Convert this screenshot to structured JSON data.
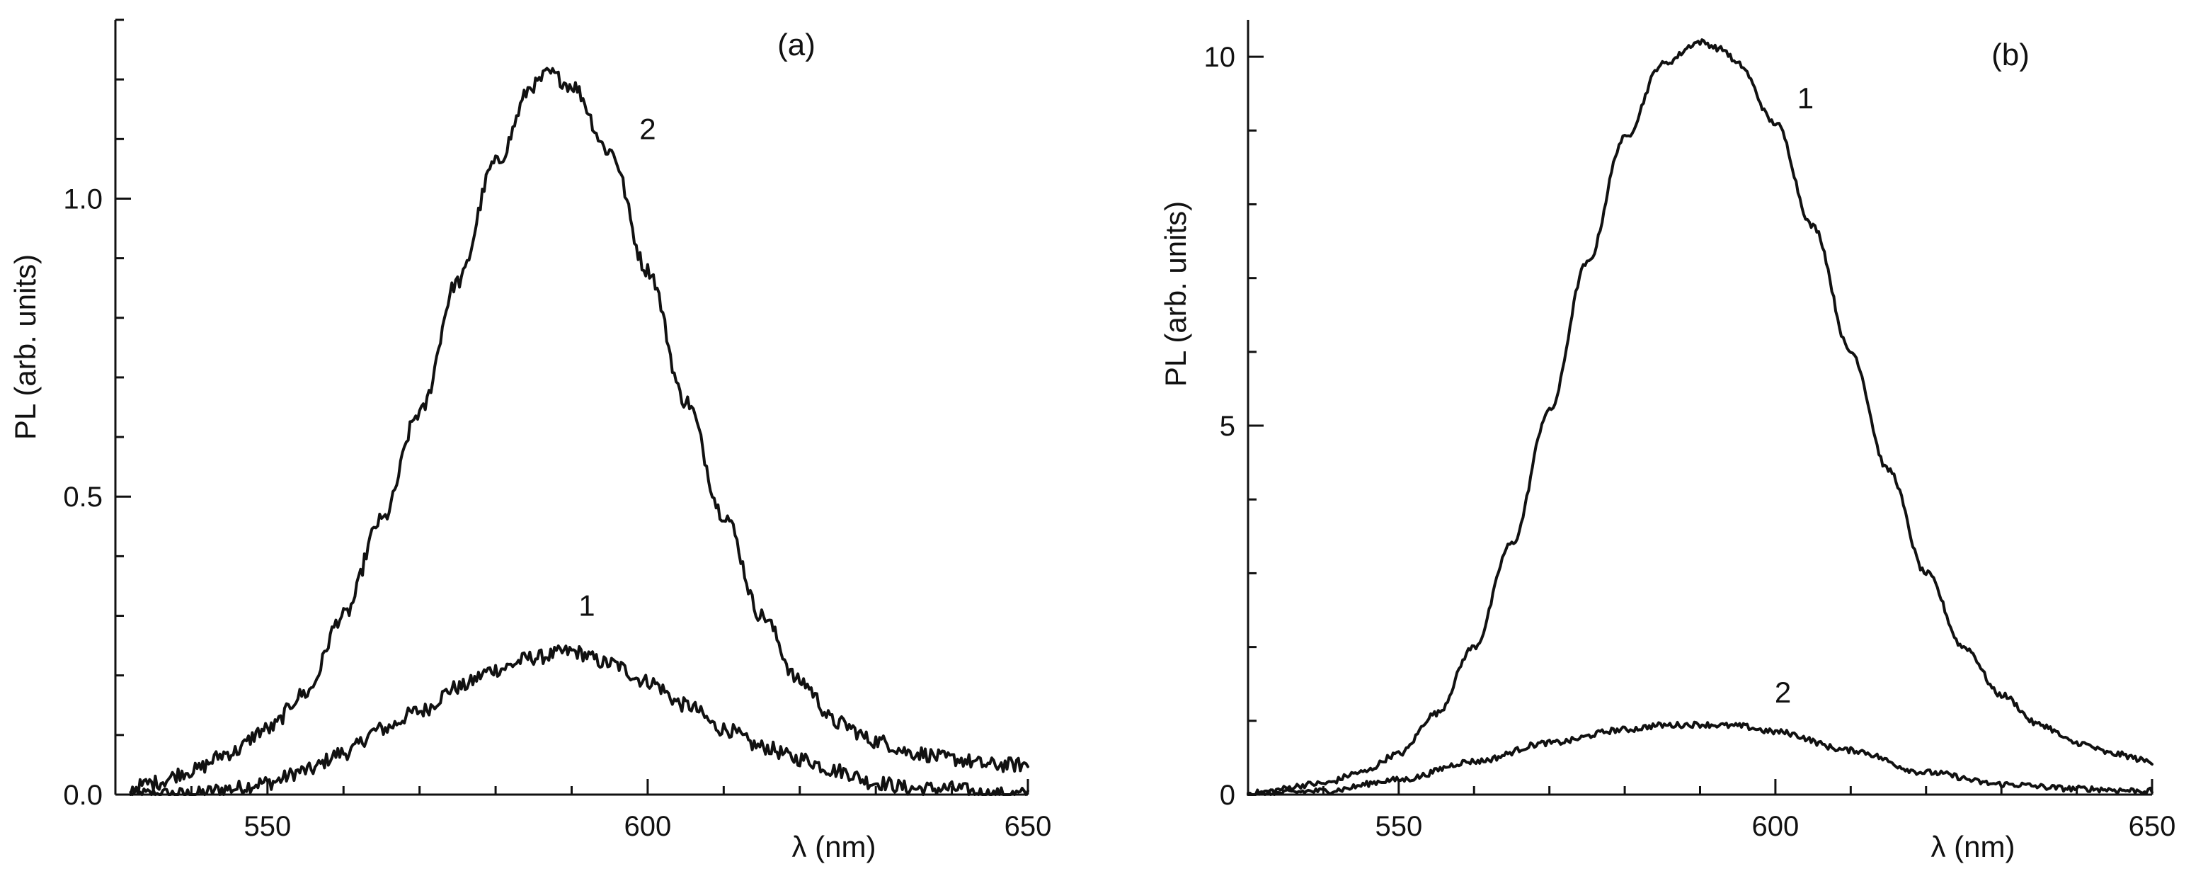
{
  "chart_data": [
    {
      "type": "line",
      "panel_label": "(a)",
      "xlabel": "λ (nm)",
      "ylabel": "PL (arb. units)",
      "xlim": [
        530,
        650
      ],
      "ylim": [
        0,
        1.3
      ],
      "xticks": [
        550,
        600,
        650
      ],
      "xtick_labels": [
        "550",
        "600",
        "650"
      ],
      "yticks": [
        0.0,
        0.5,
        1.0
      ],
      "ytick_labels": [
        "0.0",
        "0.5",
        "1.0"
      ],
      "x_minor_step": 10,
      "y_minor_step": 0.1,
      "series": [
        {
          "name": "1",
          "x": [
            532,
            540,
            545,
            550,
            555,
            560,
            565,
            570,
            575,
            580,
            585,
            590,
            595,
            600,
            605,
            610,
            615,
            620,
            625,
            630,
            635,
            640,
            645,
            650
          ],
          "values": [
            0.0,
            0.0,
            0.01,
            0.02,
            0.04,
            0.07,
            0.11,
            0.14,
            0.18,
            0.21,
            0.23,
            0.24,
            0.22,
            0.19,
            0.15,
            0.11,
            0.08,
            0.06,
            0.04,
            0.02,
            0.01,
            0.01,
            0.0,
            0.0
          ],
          "label_at": [
            592,
            0.3
          ]
        },
        {
          "name": "2",
          "x": [
            532,
            535,
            540,
            545,
            550,
            555,
            560,
            565,
            570,
            575,
            580,
            585,
            587,
            590,
            595,
            600,
            605,
            610,
            615,
            620,
            625,
            630,
            635,
            640,
            645,
            650
          ],
          "values": [
            0.01,
            0.02,
            0.04,
            0.07,
            0.11,
            0.17,
            0.3,
            0.46,
            0.64,
            0.86,
            1.06,
            1.19,
            1.21,
            1.19,
            1.08,
            0.88,
            0.66,
            0.47,
            0.3,
            0.19,
            0.12,
            0.09,
            0.07,
            0.06,
            0.05,
            0.05
          ],
          "label_at": [
            600,
            1.1
          ]
        }
      ]
    },
    {
      "type": "line",
      "panel_label": "(b)",
      "xlabel": "λ (nm)",
      "ylabel": "PL (arb. units)",
      "xlim": [
        530,
        650
      ],
      "ylim": [
        0,
        10.5
      ],
      "xticks": [
        550,
        600,
        650
      ],
      "xtick_labels": [
        "550",
        "600",
        "650"
      ],
      "yticks": [
        0,
        5,
        10
      ],
      "ytick_labels": [
        "0",
        "5",
        "10"
      ],
      "x_minor_step": 10,
      "y_minor_step": 1,
      "series": [
        {
          "name": "1",
          "x": [
            530,
            540,
            545,
            550,
            555,
            560,
            565,
            570,
            575,
            580,
            585,
            590,
            593,
            595,
            600,
            605,
            610,
            615,
            620,
            625,
            630,
            635,
            640,
            645,
            650
          ],
          "values": [
            0.02,
            0.15,
            0.3,
            0.55,
            1.1,
            2.0,
            3.4,
            5.2,
            7.2,
            8.9,
            9.9,
            10.2,
            10.1,
            9.9,
            9.1,
            7.7,
            6.0,
            4.4,
            3.0,
            2.0,
            1.35,
            0.95,
            0.7,
            0.55,
            0.45
          ],
          "label_at": [
            604,
            9.3
          ]
        },
        {
          "name": "2",
          "x": [
            530,
            540,
            550,
            560,
            570,
            580,
            585,
            590,
            595,
            600,
            610,
            620,
            630,
            640,
            650
          ],
          "values": [
            0.0,
            0.05,
            0.2,
            0.45,
            0.7,
            0.88,
            0.94,
            0.95,
            0.93,
            0.85,
            0.6,
            0.3,
            0.14,
            0.08,
            0.05
          ],
          "label_at": [
            601,
            1.25
          ]
        }
      ]
    }
  ]
}
